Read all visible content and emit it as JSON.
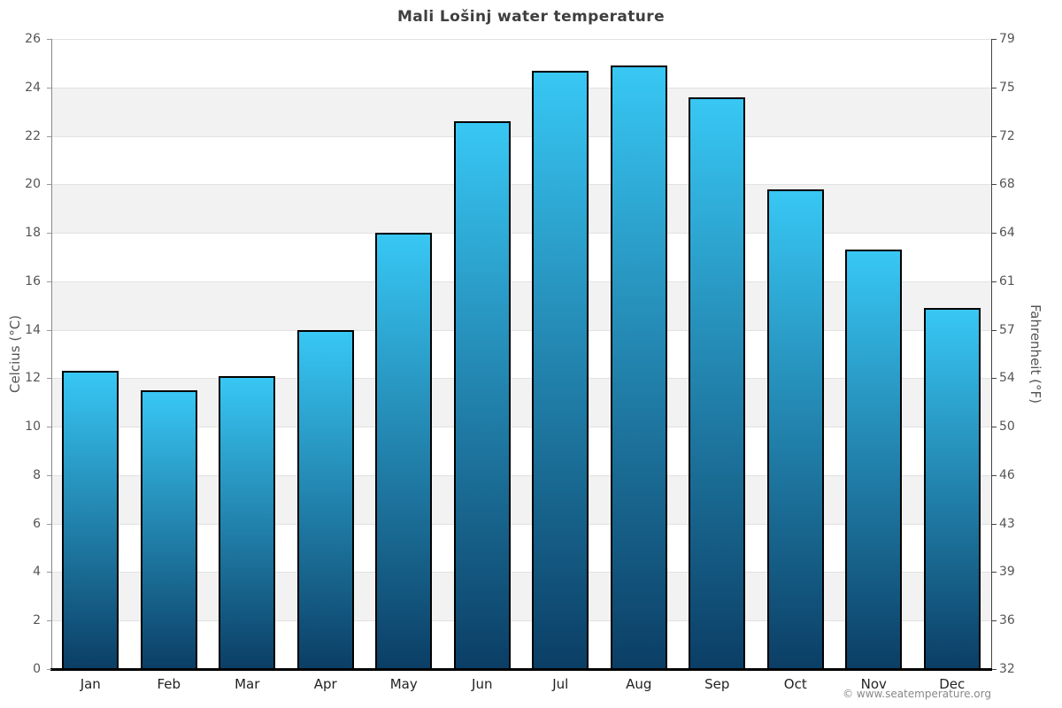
{
  "chart": {
    "title": "Mali Lošinj water temperature",
    "y_axis_left": {
      "label": "Celcius (°C)"
    },
    "y_axis_right": {
      "label": "Fahrenheit (°F)"
    },
    "footer": {
      "copyright": "© www.seatemperature.org"
    },
    "colors": {
      "bar_top": "#38c7f4",
      "bar_bottom": "#0b3e65",
      "bar_border": "#000000",
      "band_gray": "#f2f2f2",
      "band_white": "#ffffff",
      "gridline": "#e2e2e2",
      "y_axis_line": "#888888",
      "x_axis_line": "#000000",
      "tick_mark": "#999999",
      "title_text": "#3f3f3f",
      "tick_text": "#555555",
      "month_text": "#222222",
      "copyright_text": "#888888"
    }
  },
  "chart_data": {
    "type": "bar",
    "title": "Mali Lošinj water temperature",
    "categories": [
      "Jan",
      "Feb",
      "Mar",
      "Apr",
      "May",
      "Jun",
      "Jul",
      "Aug",
      "Sep",
      "Oct",
      "Nov",
      "Dec"
    ],
    "values": [
      12.3,
      11.5,
      12.1,
      14.0,
      18.0,
      22.6,
      24.7,
      24.9,
      23.6,
      19.8,
      17.3,
      14.9
    ],
    "xlabel": "",
    "ylabel": "Celcius (°C)",
    "ylabel_right": "Fahrenheit (°F)",
    "ylim": [
      0,
      26
    ],
    "ytick_step": 2,
    "yticks_left": [
      0,
      2,
      4,
      6,
      8,
      10,
      12,
      14,
      16,
      18,
      20,
      22,
      24,
      26
    ],
    "yticks_right_labels": [
      "32",
      "36",
      "39",
      "43",
      "46",
      "50",
      "54",
      "57",
      "61",
      "64",
      "68",
      "72",
      "75",
      "79"
    ],
    "grid": "alternating horizontal bands, gray stripes between odd tick pairs",
    "legend": "none",
    "bar_gradient": [
      "#38c7f4",
      "#0b3e65"
    ]
  }
}
